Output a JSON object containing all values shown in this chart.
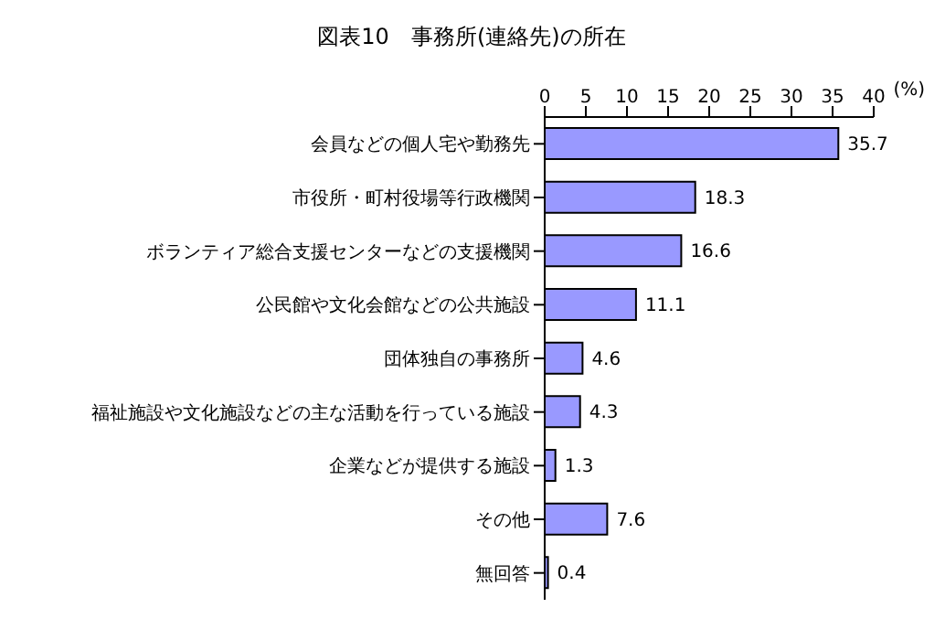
{
  "chart_data": {
    "type": "bar",
    "orientation": "horizontal",
    "title": "図表10　事務所(連絡先)の所在",
    "xlabel": "(%)",
    "categories": [
      "会員などの個人宅や勤務先",
      "市役所・町村役場等行政機関",
      "ボランティア総合支援センターなどの支援機関",
      "公民館や文化会館などの公共施設",
      "団体独自の事務所",
      "福祉施設や文化施設などの主な活動を行っている施設",
      "企業などが提供する施設",
      "その他",
      "無回答"
    ],
    "values": [
      35.7,
      18.3,
      16.6,
      11.1,
      4.6,
      4.3,
      1.3,
      7.6,
      0.4
    ],
    "color": "#9999ff",
    "xlim": [
      0,
      40
    ],
    "xticks": [
      0,
      5,
      10,
      15,
      20,
      25,
      30,
      35,
      40
    ],
    "grid": false,
    "legend": false,
    "data_labels": true
  }
}
